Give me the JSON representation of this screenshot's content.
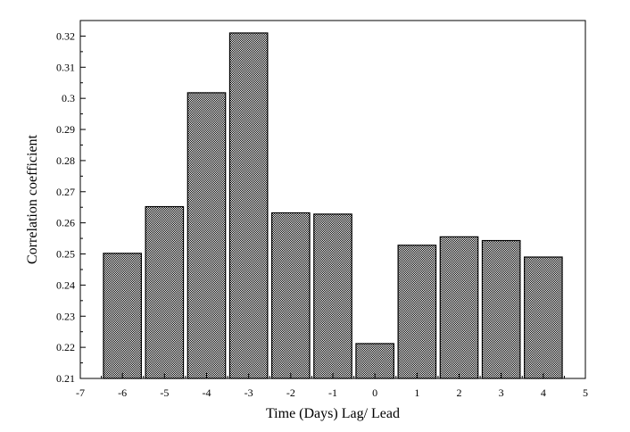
{
  "chart_data": {
    "type": "bar",
    "x": [
      -6,
      -5,
      -4,
      -3,
      -2,
      -1,
      0,
      1,
      2,
      3,
      4
    ],
    "values": [
      0.2502,
      0.2652,
      0.3018,
      0.321,
      0.2632,
      0.2628,
      0.2212,
      0.2528,
      0.2555,
      0.2543,
      0.249
    ],
    "xlabel": "Time (Days) Lag/ Lead",
    "ylabel": "Correlation coefficient",
    "xlim": [
      -7,
      5
    ],
    "ylim": [
      0.21,
      0.325
    ],
    "xticks": [
      -7,
      -6,
      -5,
      -4,
      -3,
      -2,
      -1,
      0,
      1,
      2,
      3,
      4,
      5
    ],
    "yticks": [
      0.21,
      0.22,
      0.23,
      0.24,
      0.25,
      0.26,
      0.27,
      0.28,
      0.29,
      0.3,
      0.31,
      0.32
    ],
    "bar_fill": "checkered",
    "grid": false,
    "legend": "none"
  }
}
